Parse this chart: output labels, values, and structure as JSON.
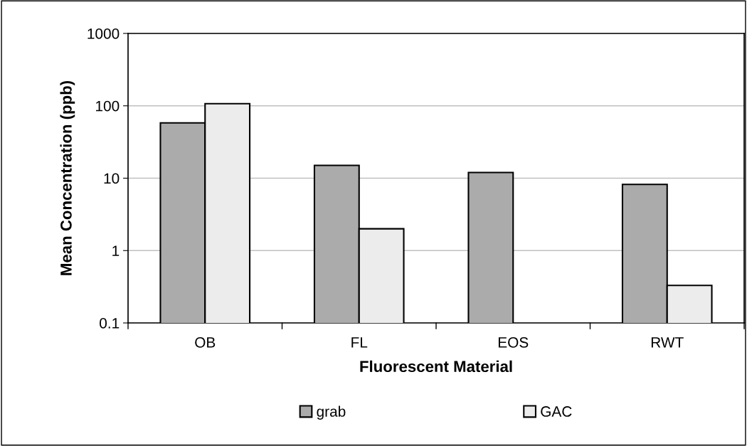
{
  "chart_data": {
    "type": "bar",
    "xlabel": "Fluorescent Material",
    "ylabel": "Mean Concentration (ppb)",
    "categories": [
      "OB",
      "FL",
      "EOS",
      "RWT"
    ],
    "series": [
      {
        "name": "grab",
        "color": "#ababab",
        "values": [
          58,
          15,
          12,
          8.2
        ]
      },
      {
        "name": "GAC",
        "color": "#ececec",
        "values": [
          107,
          2,
          null,
          0.33
        ]
      }
    ],
    "log": "y",
    "ylim": [
      0.1,
      1000
    ],
    "yticks": [
      {
        "value": 0.1,
        "label": "0.1"
      },
      1,
      10,
      100,
      1000
    ],
    "grid": "y",
    "legend": "bottom"
  }
}
